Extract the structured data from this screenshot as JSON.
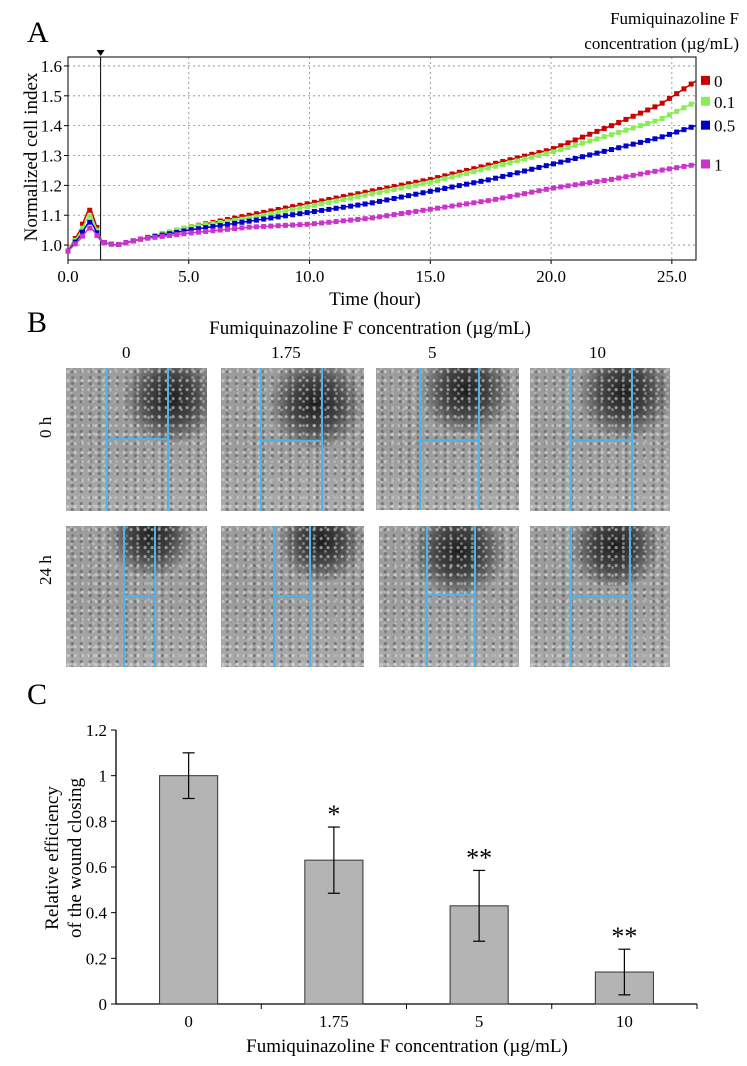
{
  "panel_a": {
    "letter": "A",
    "legend_title_line1": "Fumiquinazoline F",
    "legend_title_line2": "concentration (µg/mL)"
  },
  "panel_b": {
    "letter": "B",
    "title": "Fumiquinazoline F concentration (µg/mL)",
    "columns": [
      "0",
      "1.75",
      "5",
      "10"
    ],
    "rows": [
      "0 h",
      "24 h"
    ]
  },
  "panel_c": {
    "letter": "C"
  },
  "colors": {
    "c0": "#cc0000",
    "c01": "#88ee55",
    "c05": "#0000cc",
    "c1": "#cc33cc",
    "bar": "#b4b4b4",
    "wound_line": "#4fb3ea"
  },
  "chart_data": [
    {
      "type": "line",
      "title": "",
      "xlabel": "Time (hour)",
      "ylabel": "Normalized cell index",
      "xlim": [
        0,
        26
      ],
      "ylim": [
        0.95,
        1.63
      ],
      "xticks": [
        "0.0",
        "5.0",
        "10.0",
        "15.0",
        "20.0",
        "25.0"
      ],
      "yticks": [
        "1.0",
        "1.1",
        "1.2",
        "1.3",
        "1.4",
        "1.5",
        "1.6"
      ],
      "grid": true,
      "marker_time": 1.35,
      "series": [
        {
          "name": "0",
          "color": "#cc0000",
          "x": [
            0,
            0.5,
            0.8,
            0.95,
            1.4,
            2,
            3,
            5,
            7.5,
            10,
            12.5,
            15,
            17.5,
            20,
            22.5,
            24.5,
            26
          ],
          "y": [
            0.98,
            1.05,
            1.11,
            1.12,
            1.01,
            1.0,
            1.02,
            1.06,
            1.1,
            1.14,
            1.18,
            1.22,
            1.27,
            1.32,
            1.4,
            1.47,
            1.55
          ]
        },
        {
          "name": "0.1",
          "color": "#88ee55",
          "x": [
            0,
            0.5,
            0.8,
            0.95,
            1.4,
            2,
            3,
            5,
            7.5,
            10,
            12.5,
            15,
            17.5,
            20,
            22.5,
            24.5,
            26
          ],
          "y": [
            0.98,
            1.04,
            1.09,
            1.1,
            1.01,
            1.0,
            1.02,
            1.06,
            1.09,
            1.13,
            1.17,
            1.21,
            1.26,
            1.31,
            1.37,
            1.42,
            1.48
          ]
        },
        {
          "name": "0.5",
          "color": "#0000cc",
          "x": [
            0,
            0.5,
            0.8,
            0.95,
            1.4,
            2,
            3,
            5,
            7.5,
            10,
            12.5,
            15,
            17.5,
            20,
            22.5,
            24.5,
            26
          ],
          "y": [
            0.98,
            1.03,
            1.07,
            1.08,
            1.01,
            1.0,
            1.02,
            1.05,
            1.08,
            1.11,
            1.14,
            1.18,
            1.22,
            1.27,
            1.32,
            1.36,
            1.4
          ]
        },
        {
          "name": "1",
          "color": "#cc33cc",
          "x": [
            0,
            0.5,
            0.8,
            0.95,
            1.4,
            2,
            3,
            5,
            7.5,
            10,
            12.5,
            15,
            17.5,
            20,
            22.5,
            24.5,
            26
          ],
          "y": [
            0.98,
            1.02,
            1.05,
            1.06,
            1.01,
            1.0,
            1.02,
            1.04,
            1.06,
            1.07,
            1.09,
            1.12,
            1.15,
            1.19,
            1.22,
            1.25,
            1.27
          ]
        }
      ]
    },
    {
      "type": "bar",
      "title": "",
      "xlabel": "Fumiquinazoline F concentration (µg/mL)",
      "ylabel_line1": "Relative efficiency",
      "ylabel_line2": "of the wound closing",
      "categories": [
        "0",
        "1.75",
        "5",
        "10"
      ],
      "values": [
        1.0,
        0.63,
        0.43,
        0.14
      ],
      "errors": [
        0.1,
        0.145,
        0.155,
        0.1
      ],
      "significance": [
        "",
        "*",
        "**",
        "**"
      ],
      "ylim": [
        0,
        1.2
      ],
      "yticks": [
        "0",
        "0.2",
        "0.4",
        "0.6",
        "0.8",
        "1",
        "1.2"
      ],
      "grid": false
    }
  ]
}
